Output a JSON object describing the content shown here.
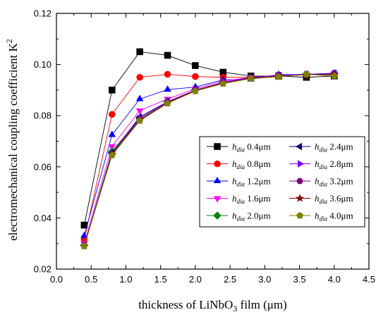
{
  "chart_data": {
    "type": "line",
    "xlabel_parts": [
      "thickness of LiNbO",
      "3",
      " film (μm)"
    ],
    "ylabel_parts": [
      "electromechanical coupling coefficient K",
      "2"
    ],
    "xlim": [
      0.0,
      4.5
    ],
    "ylim": [
      0.02,
      0.12
    ],
    "xticks": [
      0.0,
      0.5,
      1.0,
      1.5,
      2.0,
      2.5,
      3.0,
      3.5,
      4.0,
      4.5
    ],
    "xtick_labels": [
      "0.0",
      "0.5",
      "1.0",
      "1.5",
      "2.0",
      "2.5",
      "3.0",
      "3.5",
      "4.0",
      "4.5"
    ],
    "yticks": [
      0.02,
      0.04,
      0.06,
      0.08,
      0.1,
      0.12
    ],
    "ytick_labels": [
      "0.02",
      "0.04",
      "0.06",
      "0.08",
      "0.10",
      "0.12"
    ],
    "grid": false,
    "legend_position": "center-right",
    "x": [
      0.4,
      0.8,
      1.2,
      1.6,
      2.0,
      2.4,
      2.8,
      3.2,
      3.6,
      4.0
    ],
    "series": [
      {
        "name_base": "h",
        "name_sub": "dia",
        "name_value": " 0.4μm",
        "color": "#000000",
        "marker": "square",
        "values": [
          0.0372,
          0.09,
          0.105,
          0.1036,
          0.0996,
          0.097,
          0.0955,
          0.0955,
          0.095,
          0.0955
        ]
      },
      {
        "name_base": "h",
        "name_sub": "dia",
        "name_value": " 0.8μm",
        "color": "#ff0000",
        "marker": "circle",
        "values": [
          0.0316,
          0.0805,
          0.095,
          0.0962,
          0.0953,
          0.095,
          0.095,
          0.0955,
          0.096,
          0.0962
        ]
      },
      {
        "name_base": "h",
        "name_sub": "dia",
        "name_value": " 1.2μm",
        "color": "#0000ff",
        "marker": "triangle-up",
        "values": [
          0.033,
          0.0725,
          0.0865,
          0.0902,
          0.0912,
          0.094,
          0.0942,
          0.096,
          0.0962,
          0.0965
        ]
      },
      {
        "name_base": "h",
        "name_sub": "dia",
        "name_value": " 1.6μm",
        "color": "#ff00ff",
        "marker": "triangle-down",
        "values": [
          0.03,
          0.068,
          0.082,
          0.0865,
          0.0905,
          0.0935,
          0.095,
          0.0958,
          0.096,
          0.0965
        ]
      },
      {
        "name_base": "h",
        "name_sub": "dia",
        "name_value": " 2.0μm",
        "color": "#008000",
        "marker": "diamond",
        "values": [
          0.0293,
          0.066,
          0.079,
          0.0855,
          0.09,
          0.093,
          0.0948,
          0.0955,
          0.096,
          0.0963
        ]
      },
      {
        "name_base": "h",
        "name_sub": "dia",
        "name_value": " 2.4μm",
        "color": "#000080",
        "marker": "triangle-left",
        "values": [
          0.0292,
          0.0655,
          0.0795,
          0.0855,
          0.09,
          0.093,
          0.095,
          0.0958,
          0.0962,
          0.0966
        ]
      },
      {
        "name_base": "h",
        "name_sub": "dia",
        "name_value": " 2.8μm",
        "color": "#8000ff",
        "marker": "triangle-right",
        "values": [
          0.0292,
          0.065,
          0.079,
          0.0855,
          0.09,
          0.093,
          0.095,
          0.0958,
          0.0962,
          0.0966
        ]
      },
      {
        "name_base": "h",
        "name_sub": "dia",
        "name_value": " 3.2μm",
        "color": "#800080",
        "marker": "hexagon",
        "values": [
          0.0291,
          0.065,
          0.0785,
          0.0852,
          0.09,
          0.0928,
          0.0948,
          0.0955,
          0.096,
          0.0962
        ]
      },
      {
        "name_base": "h",
        "name_sub": "dia",
        "name_value": " 3.6μm",
        "color": "#800000",
        "marker": "star",
        "values": [
          0.0291,
          0.0648,
          0.0783,
          0.085,
          0.0898,
          0.0927,
          0.0947,
          0.0954,
          0.096,
          0.096
        ]
      },
      {
        "name_base": "h",
        "name_sub": "dia",
        "name_value": " 4.0μm",
        "color": "#808000",
        "marker": "pentagon",
        "values": [
          0.029,
          0.0645,
          0.078,
          0.0848,
          0.0896,
          0.0925,
          0.0945,
          0.0952,
          0.0962,
          0.0955
        ]
      }
    ]
  }
}
